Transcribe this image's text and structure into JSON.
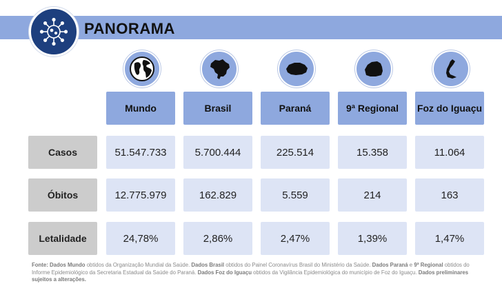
{
  "header": {
    "title": "PANORAMA",
    "logo_icon": "virus-icon"
  },
  "columns": [
    {
      "label": "Mundo",
      "icon": "globe-icon"
    },
    {
      "label": "Brasil",
      "icon": "brazil-map-icon"
    },
    {
      "label": "Paraná",
      "icon": "parana-map-icon"
    },
    {
      "label": "9ª Regional",
      "icon": "regional-map-icon"
    },
    {
      "label": "Foz do Iguaçu",
      "icon": "foz-map-icon"
    }
  ],
  "rows": [
    {
      "label": "Casos",
      "values": [
        "51.547.733",
        "5.700.444",
        "225.514",
        "15.358",
        "11.064"
      ]
    },
    {
      "label": "Óbitos",
      "values": [
        "12.775.979",
        "162.829",
        "5.559",
        "214",
        "163"
      ]
    },
    {
      "label": "Letalidade",
      "values": [
        "24,78%",
        "2,86%",
        "2,47%",
        "1,39%",
        "1,47%"
      ]
    }
  ],
  "footnote": {
    "p1": "Fonte: Dados Mundo",
    "p2": " obtidos da Organização Mundial da Saúde. ",
    "p3": "Dados Brasil",
    "p4": " obtidos do Painel Coronavírus Brasil do Ministério da Saúde. ",
    "p5": "Dados Paraná",
    "p6": " e ",
    "p7": "9ª Regional",
    "p8": " obtidos do Informe Epidemiológico da Secretaria Estadual da Saúde do Paraná. ",
    "p9": "Dados Foz do Iguaçu",
    "p10": " obtidos da Vigilância Epidemiológica do município de Foz do Iguaçu. ",
    "p11": "Dados preliminares sujeitos a alterações."
  },
  "colors": {
    "accent": "#8ea8de",
    "navy": "#1d3f7e",
    "cell": "#dde4f5",
    "row_head": "#cccccc"
  }
}
